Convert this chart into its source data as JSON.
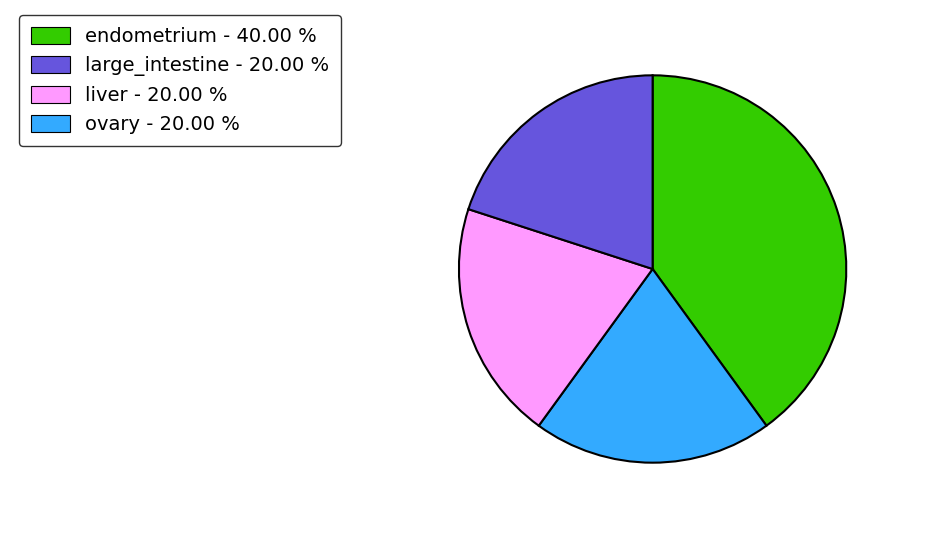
{
  "labels": [
    "endometrium",
    "ovary",
    "liver",
    "large_intestine"
  ],
  "values": [
    40.0,
    20.0,
    20.0,
    20.0
  ],
  "colors": [
    "#33cc00",
    "#33aaff",
    "#ff99ff",
    "#6655dd"
  ],
  "legend_labels": [
    "endometrium - 40.00 %",
    "large_intestine - 20.00 %",
    "liver - 20.00 %",
    "ovary - 20.00 %"
  ],
  "legend_colors": [
    "#33cc00",
    "#6655dd",
    "#ff99ff",
    "#33aaff"
  ],
  "background_color": "#ffffff",
  "figsize": [
    9.39,
    5.38
  ],
  "dpi": 100,
  "start_angle": 90,
  "legend_fontsize": 14
}
